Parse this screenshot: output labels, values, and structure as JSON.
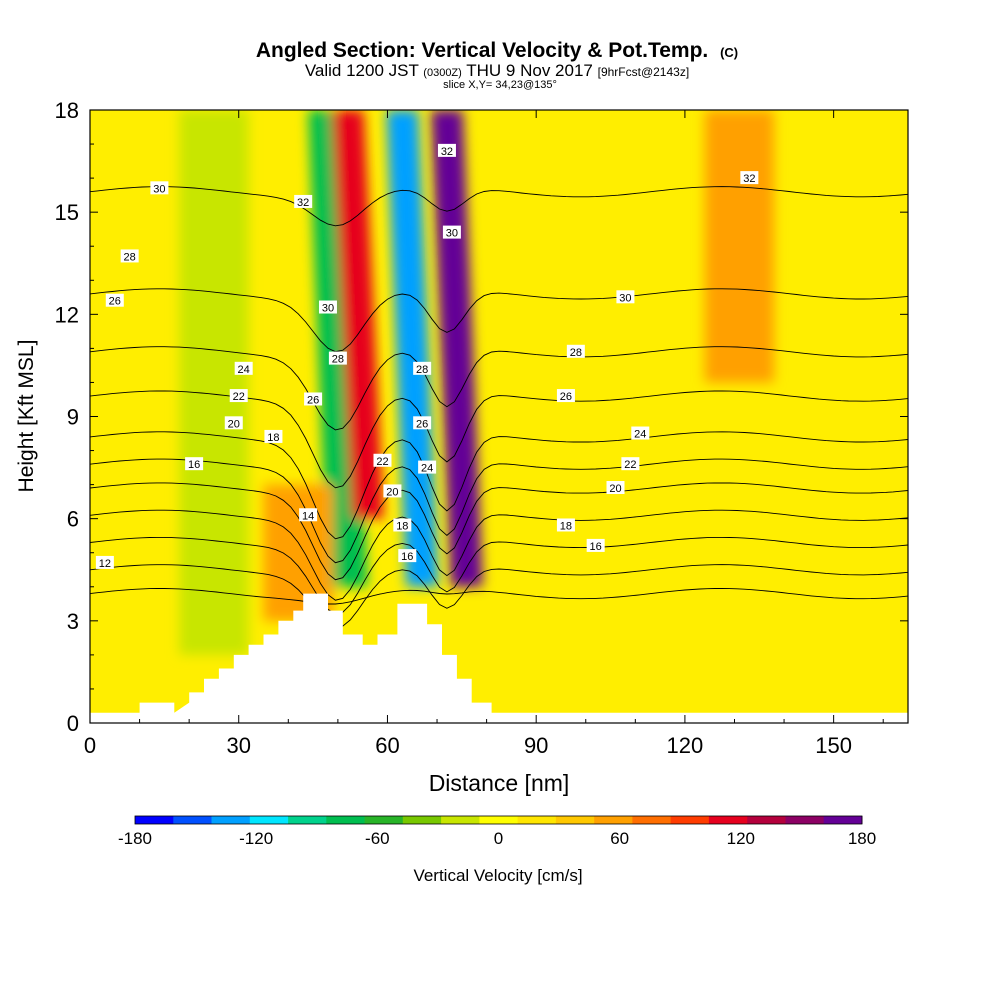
{
  "chart_data": {
    "type": "heatmap",
    "title": "Angled Section: Vertical Velocity & Pot.Temp.",
    "title_units": "(C)",
    "subtitle": {
      "valid": "Valid 1200 JST",
      "utc": "(0300Z)",
      "date": "THU 9 Nov 2017",
      "fcst": "[9hrFcst@2143z]"
    },
    "slice_text": "slice X,Y= 34,23@135°",
    "xlabel": "Distance [nm]",
    "ylabel": "Height [Kft MSL]",
    "xlim": [
      0,
      165
    ],
    "ylim": [
      0,
      18
    ],
    "x_ticks": [
      "0",
      "30",
      "60",
      "90",
      "120",
      "150"
    ],
    "y_ticks": [
      "0",
      "3",
      "6",
      "9",
      "12",
      "15",
      "18"
    ],
    "colorbar": {
      "label": "Vertical Velocity [cm/s]",
      "range": [
        -180,
        180
      ],
      "tick_labels": [
        "-180",
        "-120",
        "-60",
        "0",
        "60",
        "120",
        "180"
      ],
      "colors": [
        "#0000ff",
        "#0050ff",
        "#00a0ff",
        "#00e6ff",
        "#00d28c",
        "#00be50",
        "#28b428",
        "#78c800",
        "#c8e600",
        "#ffff00",
        "#ffe600",
        "#ffc800",
        "#ffa000",
        "#ff6e00",
        "#ff3c00",
        "#e6001e",
        "#b4003c",
        "#8c0064",
        "#640096"
      ]
    },
    "velocity_features_cm_s": [
      {
        "x": 52,
        "y_range": [
          4,
          18
        ],
        "value": -80
      },
      {
        "x": 56,
        "y_range": [
          6,
          18
        ],
        "value": 110
      },
      {
        "x": 67,
        "y_range": [
          4,
          18
        ],
        "value": -150
      },
      {
        "x": 76,
        "y_range": [
          4,
          18
        ],
        "value": 170
      },
      {
        "x": 131,
        "y_range": [
          10,
          18
        ],
        "value": 60
      },
      {
        "x": 42,
        "y_range": [
          3,
          7
        ],
        "value": 50
      },
      {
        "x": 25,
        "y_range": [
          2,
          18
        ],
        "value": -30
      }
    ],
    "terrain": [
      [
        0,
        0.3
      ],
      [
        10,
        0.3
      ],
      [
        10,
        0.6
      ],
      [
        17,
        0.6
      ],
      [
        17,
        0.3
      ],
      [
        20,
        0.6
      ],
      [
        20,
        0.9
      ],
      [
        23,
        0.9
      ],
      [
        23,
        1.3
      ],
      [
        26,
        1.3
      ],
      [
        26,
        1.6
      ],
      [
        29,
        1.6
      ],
      [
        29,
        2.0
      ],
      [
        32,
        2.0
      ],
      [
        32,
        2.3
      ],
      [
        35,
        2.3
      ],
      [
        35,
        2.6
      ],
      [
        38,
        2.6
      ],
      [
        38,
        3.0
      ],
      [
        41,
        3.0
      ],
      [
        41,
        3.3
      ],
      [
        43,
        3.3
      ],
      [
        43,
        3.8
      ],
      [
        48,
        3.8
      ],
      [
        48,
        3.3
      ],
      [
        51,
        3.3
      ],
      [
        51,
        2.6
      ],
      [
        55,
        2.6
      ],
      [
        55,
        2.3
      ],
      [
        58,
        2.3
      ],
      [
        58,
        2.6
      ],
      [
        62,
        2.6
      ],
      [
        62,
        3.5
      ],
      [
        68,
        3.5
      ],
      [
        68,
        2.9
      ],
      [
        71,
        2.9
      ],
      [
        71,
        2.0
      ],
      [
        74,
        2.0
      ],
      [
        74,
        1.3
      ],
      [
        77,
        1.3
      ],
      [
        77,
        0.6
      ],
      [
        81,
        0.6
      ],
      [
        81,
        0.3
      ],
      [
        165,
        0.3
      ]
    ],
    "isentropes": [
      {
        "label": "12",
        "base": 3.8,
        "amp": 0.2
      },
      {
        "label": "14",
        "base": 4.5,
        "amp": 1.6
      },
      {
        "label": "16",
        "base": 5.3,
        "amp": 2.0
      },
      {
        "label": "18",
        "base": 6.1,
        "amp": 2.4
      },
      {
        "label": "20",
        "base": 6.9,
        "amp": 2.6
      },
      {
        "label": "22",
        "base": 7.6,
        "amp": 2.8
      },
      {
        "label": "24",
        "base": 8.4,
        "amp": 2.9
      },
      {
        "label": "26",
        "base": 9.6,
        "amp": 2.6
      },
      {
        "label": "28",
        "base": 10.9,
        "amp": 2.2
      },
      {
        "label": "30",
        "base": 12.6,
        "amp": 1.6
      },
      {
        "label": "32",
        "base": 15.6,
        "amp": 0.9
      }
    ],
    "contour_labels": [
      {
        "text": "30",
        "x": 14,
        "y": 15.7
      },
      {
        "text": "28",
        "x": 8,
        "y": 13.7
      },
      {
        "text": "26",
        "x": 5,
        "y": 12.4
      },
      {
        "text": "24",
        "x": 31,
        "y": 10.4
      },
      {
        "text": "22",
        "x": 30,
        "y": 9.6
      },
      {
        "text": "20",
        "x": 29,
        "y": 8.8
      },
      {
        "text": "18",
        "x": 37,
        "y": 8.4
      },
      {
        "text": "16",
        "x": 21,
        "y": 7.6
      },
      {
        "text": "14",
        "x": 44,
        "y": 6.1
      },
      {
        "text": "12",
        "x": 3,
        "y": 4.7
      },
      {
        "text": "32",
        "x": 43,
        "y": 15.3
      },
      {
        "text": "30",
        "x": 48,
        "y": 12.2
      },
      {
        "text": "28",
        "x": 50,
        "y": 10.7
      },
      {
        "text": "26",
        "x": 45,
        "y": 9.5
      },
      {
        "text": "32",
        "x": 72,
        "y": 16.8
      },
      {
        "text": "30",
        "x": 73,
        "y": 14.4
      },
      {
        "text": "28",
        "x": 67,
        "y": 10.4
      },
      {
        "text": "26",
        "x": 67,
        "y": 8.8
      },
      {
        "text": "24",
        "x": 68,
        "y": 7.5
      },
      {
        "text": "22",
        "x": 59,
        "y": 7.7
      },
      {
        "text": "20",
        "x": 61,
        "y": 6.8
      },
      {
        "text": "18",
        "x": 63,
        "y": 5.8
      },
      {
        "text": "16",
        "x": 64,
        "y": 4.9
      },
      {
        "text": "32",
        "x": 133,
        "y": 16.0
      },
      {
        "text": "30",
        "x": 108,
        "y": 12.5
      },
      {
        "text": "28",
        "x": 98,
        "y": 10.9
      },
      {
        "text": "26",
        "x": 96,
        "y": 9.6
      },
      {
        "text": "24",
        "x": 111,
        "y": 8.5
      },
      {
        "text": "22",
        "x": 109,
        "y": 7.6
      },
      {
        "text": "20",
        "x": 106,
        "y": 6.9
      },
      {
        "text": "18",
        "x": 96,
        "y": 5.8
      },
      {
        "text": "16",
        "x": 102,
        "y": 5.2
      }
    ]
  }
}
